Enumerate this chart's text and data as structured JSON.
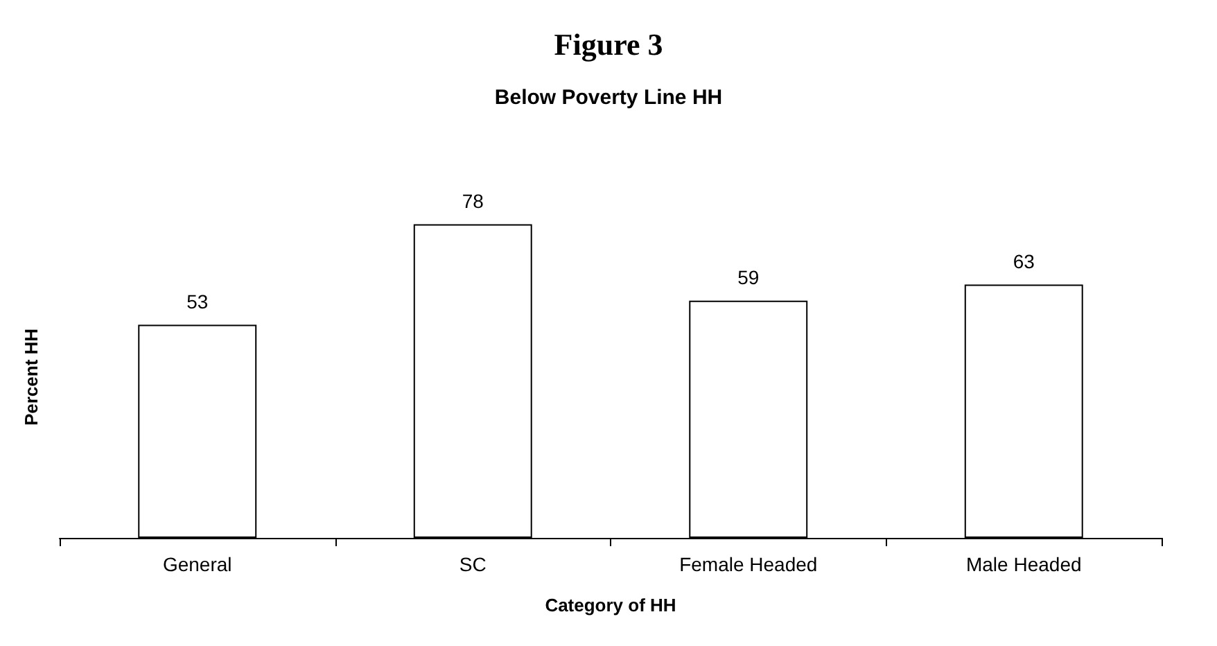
{
  "chart_data": {
    "type": "bar",
    "title": "Figure 3",
    "subtitle": "Below Poverty Line HH",
    "xlabel": "Category of HH",
    "ylabel": "Percent HH",
    "categories": [
      "General",
      "SC",
      "Female Headed",
      "Male Headed"
    ],
    "values": [
      53,
      78,
      59,
      63
    ],
    "color": "#ffffff",
    "data_labels": true,
    "tick_labels": "x"
  }
}
